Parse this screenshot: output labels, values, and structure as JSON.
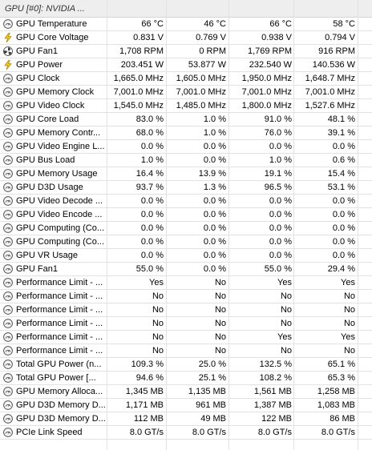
{
  "group": {
    "title": "GPU [#0]: NVIDIA ..."
  },
  "icons": {
    "sensor": "gauge-icon",
    "voltage": "lightning-bolt-icon",
    "fan": "fan-icon",
    "power": "lightning-bolt-icon"
  },
  "colors": {
    "bolt_fill": "#f5c800",
    "bolt_stroke": "#9a6e00",
    "fan_fill": "#3d3d3d",
    "gauge_stroke": "#555555",
    "gauge_fill": "#f4f4f4"
  },
  "rows": [
    {
      "icon": "thermometer-icon",
      "name": "GPU Temperature",
      "values": [
        "66 °C",
        "46 °C",
        "66 °C",
        "58 °C"
      ]
    },
    {
      "icon": "lightning-bolt-icon",
      "name": "GPU Core Voltage",
      "values": [
        "0.831 V",
        "0.769 V",
        "0.938 V",
        "0.794 V"
      ]
    },
    {
      "icon": "fan-icon",
      "name": "GPU Fan1",
      "values": [
        "1,708 RPM",
        "0 RPM",
        "1,769 RPM",
        "916 RPM"
      ]
    },
    {
      "icon": "lightning-bolt-icon",
      "name": "GPU Power",
      "values": [
        "203.451 W",
        "53.877 W",
        "232.540 W",
        "140.536 W"
      ]
    },
    {
      "icon": "gauge-icon",
      "name": "GPU Clock",
      "values": [
        "1,665.0 MHz",
        "1,605.0 MHz",
        "1,950.0 MHz",
        "1,648.7 MHz"
      ]
    },
    {
      "icon": "gauge-icon",
      "name": "GPU Memory Clock",
      "values": [
        "7,001.0 MHz",
        "7,001.0 MHz",
        "7,001.0 MHz",
        "7,001.0 MHz"
      ]
    },
    {
      "icon": "gauge-icon",
      "name": "GPU Video Clock",
      "values": [
        "1,545.0 MHz",
        "1,485.0 MHz",
        "1,800.0 MHz",
        "1,527.6 MHz"
      ]
    },
    {
      "icon": "gauge-icon",
      "name": "GPU Core Load",
      "values": [
        "83.0 %",
        "1.0 %",
        "91.0 %",
        "48.1 %"
      ]
    },
    {
      "icon": "gauge-icon",
      "name": "GPU Memory Contr...",
      "values": [
        "68.0 %",
        "1.0 %",
        "76.0 %",
        "39.1 %"
      ]
    },
    {
      "icon": "gauge-icon",
      "name": "GPU Video Engine L...",
      "values": [
        "0.0 %",
        "0.0 %",
        "0.0 %",
        "0.0 %"
      ]
    },
    {
      "icon": "gauge-icon",
      "name": "GPU Bus Load",
      "values": [
        "1.0 %",
        "0.0 %",
        "1.0 %",
        "0.6 %"
      ]
    },
    {
      "icon": "gauge-icon",
      "name": "GPU Memory Usage",
      "values": [
        "16.4 %",
        "13.9 %",
        "19.1 %",
        "15.4 %"
      ]
    },
    {
      "icon": "gauge-icon",
      "name": "GPU D3D Usage",
      "values": [
        "93.7 %",
        "1.3 %",
        "96.5 %",
        "53.1 %"
      ]
    },
    {
      "icon": "gauge-icon",
      "name": "GPU Video Decode ...",
      "values": [
        "0.0 %",
        "0.0 %",
        "0.0 %",
        "0.0 %"
      ]
    },
    {
      "icon": "gauge-icon",
      "name": "GPU Video Encode ...",
      "values": [
        "0.0 %",
        "0.0 %",
        "0.0 %",
        "0.0 %"
      ]
    },
    {
      "icon": "gauge-icon",
      "name": "GPU Computing (Co...",
      "values": [
        "0.0 %",
        "0.0 %",
        "0.0 %",
        "0.0 %"
      ]
    },
    {
      "icon": "gauge-icon",
      "name": "GPU Computing (Co...",
      "values": [
        "0.0 %",
        "0.0 %",
        "0.0 %",
        "0.0 %"
      ]
    },
    {
      "icon": "gauge-icon",
      "name": "GPU VR Usage",
      "values": [
        "0.0 %",
        "0.0 %",
        "0.0 %",
        "0.0 %"
      ]
    },
    {
      "icon": "gauge-icon",
      "name": "GPU Fan1",
      "values": [
        "55.0 %",
        "0.0 %",
        "55.0 %",
        "29.4 %"
      ]
    },
    {
      "icon": "gauge-icon",
      "name": "Performance Limit - ...",
      "values": [
        "Yes",
        "No",
        "Yes",
        "Yes"
      ]
    },
    {
      "icon": "gauge-icon",
      "name": "Performance Limit - ...",
      "values": [
        "No",
        "No",
        "No",
        "No"
      ]
    },
    {
      "icon": "gauge-icon",
      "name": "Performance Limit - ...",
      "values": [
        "No",
        "No",
        "No",
        "No"
      ]
    },
    {
      "icon": "gauge-icon",
      "name": "Performance Limit - ...",
      "values": [
        "No",
        "No",
        "No",
        "No"
      ]
    },
    {
      "icon": "gauge-icon",
      "name": "Performance Limit - ...",
      "values": [
        "No",
        "No",
        "Yes",
        "Yes"
      ]
    },
    {
      "icon": "gauge-icon",
      "name": "Performance Limit - ...",
      "values": [
        "No",
        "No",
        "No",
        "No"
      ]
    },
    {
      "icon": "gauge-icon",
      "name": "Total GPU Power (n...",
      "values": [
        "109.3 %",
        "25.0 %",
        "132.5 %",
        "65.1 %"
      ]
    },
    {
      "icon": "gauge-icon",
      "name": "Total GPU Power [...",
      "values": [
        "94.6 %",
        "25.1 %",
        "108.2 %",
        "65.3 %"
      ]
    },
    {
      "icon": "gauge-icon",
      "name": "GPU Memory Alloca...",
      "values": [
        "1,345 MB",
        "1,135 MB",
        "1,561 MB",
        "1,258 MB"
      ]
    },
    {
      "icon": "gauge-icon",
      "name": "GPU D3D Memory D...",
      "values": [
        "1,171 MB",
        "961 MB",
        "1,387 MB",
        "1,083 MB"
      ]
    },
    {
      "icon": "gauge-icon",
      "name": "GPU D3D Memory D...",
      "values": [
        "112 MB",
        "49 MB",
        "122 MB",
        "86 MB"
      ]
    },
    {
      "icon": "gauge-icon",
      "name": "PCIe Link Speed",
      "values": [
        "8.0 GT/s",
        "8.0 GT/s",
        "8.0 GT/s",
        "8.0 GT/s"
      ]
    }
  ]
}
